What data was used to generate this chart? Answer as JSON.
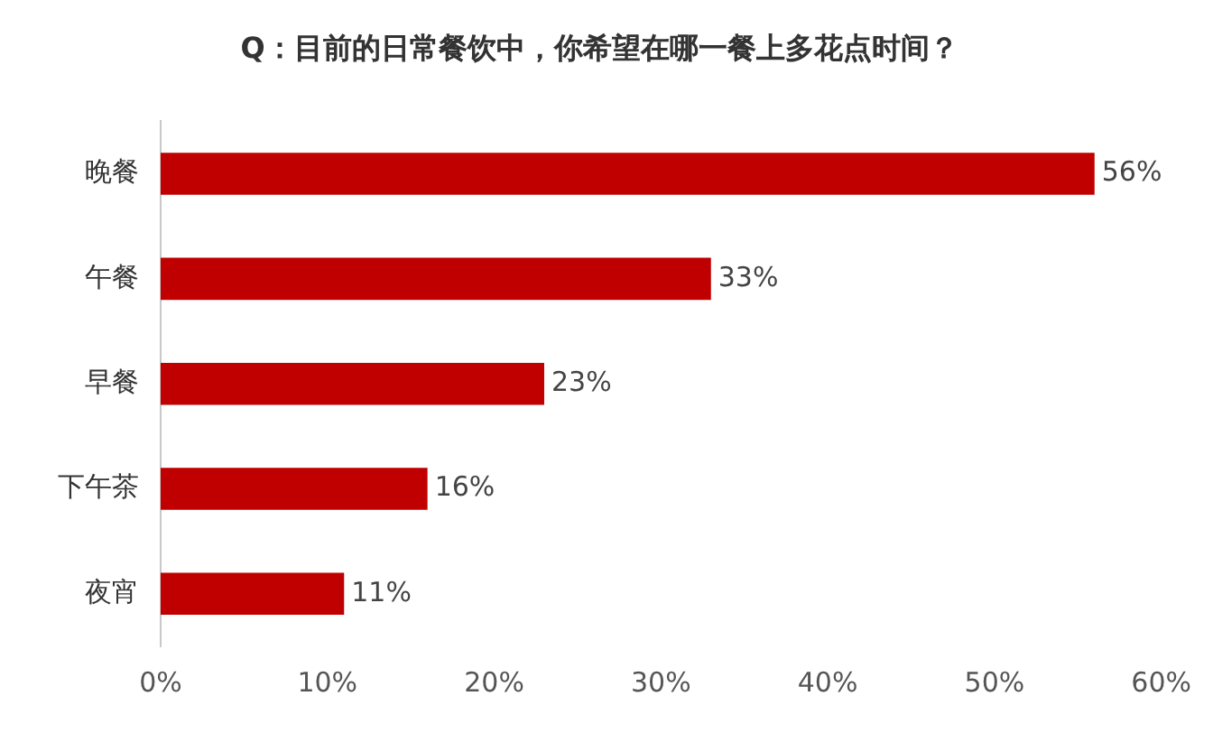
{
  "chart_data": {
    "type": "bar",
    "orientation": "horizontal",
    "title": "Q：目前的日常餐饮中，你希望在哪一餐上多花点时间？",
    "categories": [
      "晚餐",
      "午餐",
      "早餐",
      "下午茶",
      "夜宵"
    ],
    "values": [
      56,
      33,
      23,
      16,
      11
    ],
    "color": "#c00000",
    "value_labels": [
      "56%",
      "33%",
      "23%",
      "16%",
      "11%"
    ],
    "xlim": [
      0,
      60
    ],
    "xticks": [
      {
        "value": 0,
        "label": "0%"
      },
      {
        "value": 10,
        "label": "10%"
      },
      {
        "value": 20,
        "label": "20%"
      },
      {
        "value": 30,
        "label": "30%"
      },
      {
        "value": 40,
        "label": "40%"
      },
      {
        "value": 50,
        "label": "50%"
      },
      {
        "value": 60,
        "label": "60%"
      }
    ],
    "grid": false,
    "legend": false
  }
}
